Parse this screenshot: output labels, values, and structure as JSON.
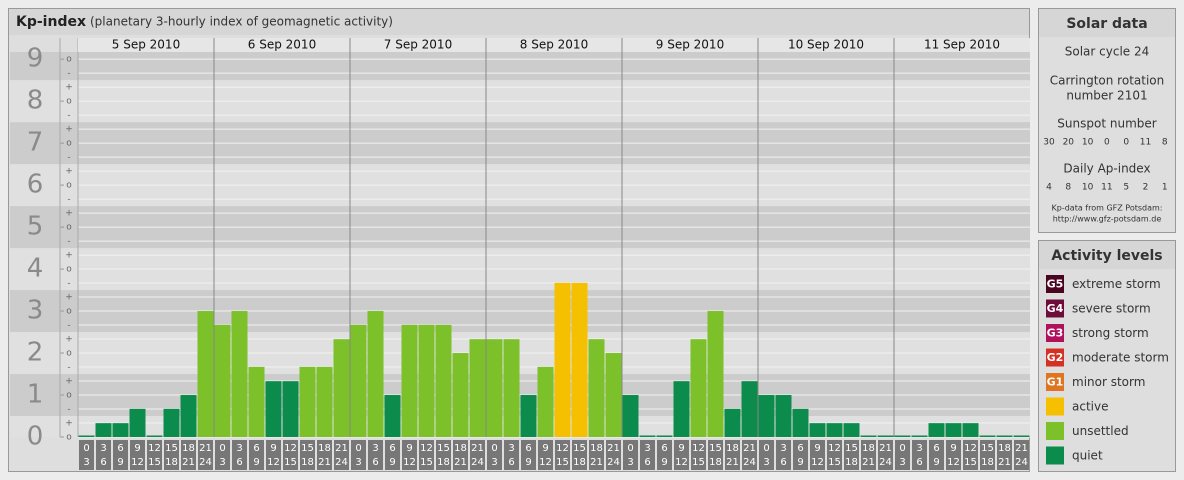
{
  "title": "Kp-index",
  "subtitle": "(planetary 3-hourly index of geomagnetic activity)",
  "chart_data": {
    "type": "bar",
    "days": [
      "5 Sep 2010",
      "6 Sep 2010",
      "7 Sep 2010",
      "8 Sep 2010",
      "9 Sep 2010",
      "10 Sep 2010",
      "11 Sep 2010"
    ],
    "hours": [
      [
        0,
        3
      ],
      [
        3,
        6
      ],
      [
        6,
        9
      ],
      [
        9,
        12
      ],
      [
        12,
        15
      ],
      [
        15,
        18
      ],
      [
        18,
        21
      ],
      [
        21,
        24
      ]
    ],
    "values": [
      [
        0,
        0.33,
        0.33,
        0.67,
        0,
        0.67,
        1,
        3
      ],
      [
        2.67,
        3,
        1.67,
        1.33,
        1.33,
        1.67,
        1.67,
        2.33
      ],
      [
        2.67,
        3,
        1,
        2.67,
        2.67,
        2.67,
        2,
        2.33
      ],
      [
        2.33,
        2.33,
        1,
        1.67,
        3.67,
        3.67,
        2.33,
        2
      ],
      [
        1,
        0,
        0,
        1.33,
        2.33,
        3,
        0.67,
        1.33
      ],
      [
        1,
        1,
        0.67,
        0.33,
        0.33,
        0.33,
        0,
        0
      ],
      [
        0,
        0,
        0.33,
        0.33,
        0.33,
        0,
        0,
        0
      ]
    ],
    "colors": [
      [
        "#0c8c4c",
        "#0c8c4c",
        "#0c8c4c",
        "#0c8c4c",
        "#0c8c4c",
        "#0c8c4c",
        "#0c8c4c",
        "#7cc02a"
      ],
      [
        "#7cc02a",
        "#7cc02a",
        "#7cc02a",
        "#0c8c4c",
        "#0c8c4c",
        "#7cc02a",
        "#7cc02a",
        "#7cc02a"
      ],
      [
        "#7cc02a",
        "#7cc02a",
        "#0c8c4c",
        "#7cc02a",
        "#7cc02a",
        "#7cc02a",
        "#7cc02a",
        "#7cc02a"
      ],
      [
        "#7cc02a",
        "#7cc02a",
        "#0c8c4c",
        "#7cc02a",
        "#f5c000",
        "#f5c000",
        "#7cc02a",
        "#7cc02a"
      ],
      [
        "#0c8c4c",
        "#0c8c4c",
        "#0c8c4c",
        "#0c8c4c",
        "#7cc02a",
        "#7cc02a",
        "#0c8c4c",
        "#0c8c4c"
      ],
      [
        "#0c8c4c",
        "#0c8c4c",
        "#0c8c4c",
        "#0c8c4c",
        "#0c8c4c",
        "#0c8c4c",
        "#0c8c4c",
        "#0c8c4c"
      ],
      [
        "#0c8c4c",
        "#0c8c4c",
        "#0c8c4c",
        "#0c8c4c",
        "#0c8c4c",
        "#0c8c4c",
        "#0c8c4c",
        "#0c8c4c"
      ]
    ],
    "ylim": [
      0,
      9.17
    ],
    "yticks": [
      0,
      1,
      2,
      3,
      4,
      5,
      6,
      7,
      8,
      9
    ],
    "minor_ticks": [
      "o",
      "+",
      "-"
    ]
  },
  "solar_data": {
    "title": "Solar data",
    "cycle": "Solar cycle 24",
    "carrington": [
      "Carrington rotation",
      "number 2101"
    ],
    "sunspot_label": "Sunspot number",
    "sunspot": [
      30,
      20,
      10,
      0,
      0,
      11,
      8
    ],
    "ap_label": "Daily Ap-index",
    "ap": [
      4,
      8,
      10,
      11,
      5,
      2,
      1
    ],
    "source": "Kp-data from GFZ Potsdam:",
    "url": "http://www.gfz-potsdam.de"
  },
  "activity_levels": {
    "title": "Activity levels",
    "items": [
      {
        "badge": "G5",
        "label": "extreme storm",
        "color": "#4a0620"
      },
      {
        "badge": "G4",
        "label": "severe storm",
        "color": "#6e0c3a"
      },
      {
        "badge": "G3",
        "label": "strong storm",
        "color": "#b0105c"
      },
      {
        "badge": "G2",
        "label": "moderate storm",
        "color": "#d43024"
      },
      {
        "badge": "G1",
        "label": "minor storm",
        "color": "#e07420"
      },
      {
        "badge": "",
        "label": "active",
        "color": "#f5c000"
      },
      {
        "badge": "",
        "label": "unsettled",
        "color": "#7cc02a"
      },
      {
        "badge": "",
        "label": "quiet",
        "color": "#0c8c4c"
      }
    ]
  }
}
